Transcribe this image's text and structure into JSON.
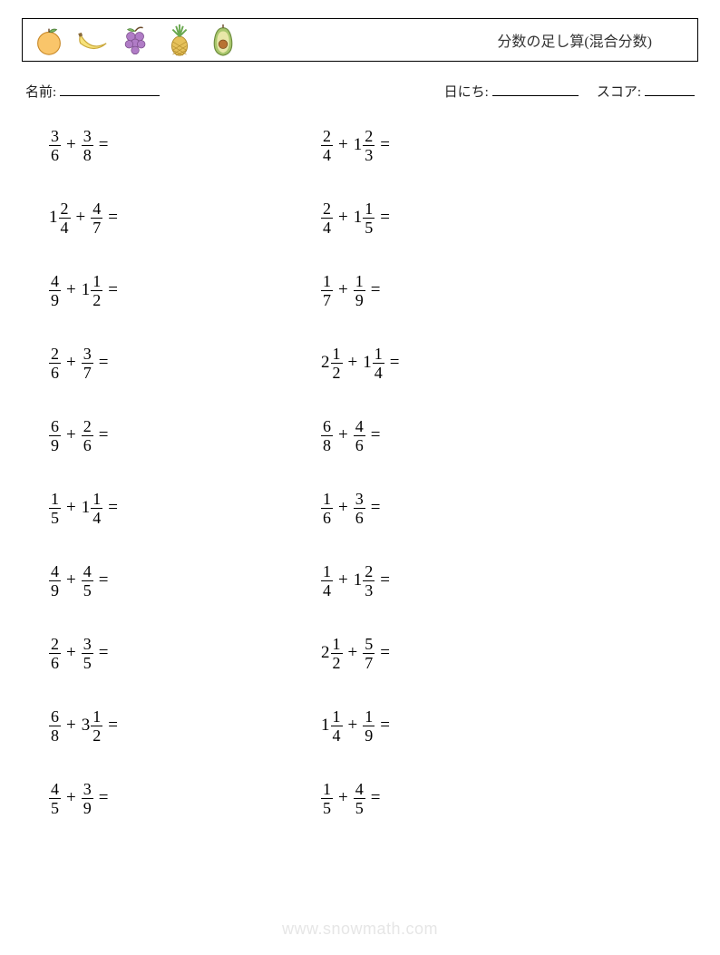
{
  "header": {
    "title": "分数の足し算(混合分数)",
    "fruits": [
      "orange",
      "banana",
      "grapes",
      "pineapple",
      "avocado"
    ]
  },
  "meta": {
    "name_label": "名前:",
    "date_label": "日にち:",
    "score_label": "スコア:"
  },
  "columns": [
    [
      {
        "a": {
          "w": null,
          "n": 3,
          "d": 6
        },
        "b": {
          "w": null,
          "n": 3,
          "d": 8
        }
      },
      {
        "a": {
          "w": 1,
          "n": 2,
          "d": 4
        },
        "b": {
          "w": null,
          "n": 4,
          "d": 7
        }
      },
      {
        "a": {
          "w": null,
          "n": 4,
          "d": 9
        },
        "b": {
          "w": 1,
          "n": 1,
          "d": 2
        }
      },
      {
        "a": {
          "w": null,
          "n": 2,
          "d": 6
        },
        "b": {
          "w": null,
          "n": 3,
          "d": 7
        }
      },
      {
        "a": {
          "w": null,
          "n": 6,
          "d": 9
        },
        "b": {
          "w": null,
          "n": 2,
          "d": 6
        }
      },
      {
        "a": {
          "w": null,
          "n": 1,
          "d": 5
        },
        "b": {
          "w": 1,
          "n": 1,
          "d": 4
        }
      },
      {
        "a": {
          "w": null,
          "n": 4,
          "d": 9
        },
        "b": {
          "w": null,
          "n": 4,
          "d": 5
        }
      },
      {
        "a": {
          "w": null,
          "n": 2,
          "d": 6
        },
        "b": {
          "w": null,
          "n": 3,
          "d": 5
        }
      },
      {
        "a": {
          "w": null,
          "n": 6,
          "d": 8
        },
        "b": {
          "w": 3,
          "n": 1,
          "d": 2
        }
      },
      {
        "a": {
          "w": null,
          "n": 4,
          "d": 5
        },
        "b": {
          "w": null,
          "n": 3,
          "d": 9
        }
      }
    ],
    [
      {
        "a": {
          "w": null,
          "n": 2,
          "d": 4
        },
        "b": {
          "w": 1,
          "n": 2,
          "d": 3
        }
      },
      {
        "a": {
          "w": null,
          "n": 2,
          "d": 4
        },
        "b": {
          "w": 1,
          "n": 1,
          "d": 5
        }
      },
      {
        "a": {
          "w": null,
          "n": 1,
          "d": 7
        },
        "b": {
          "w": null,
          "n": 1,
          "d": 9
        }
      },
      {
        "a": {
          "w": 2,
          "n": 1,
          "d": 2
        },
        "b": {
          "w": 1,
          "n": 1,
          "d": 4
        }
      },
      {
        "a": {
          "w": null,
          "n": 6,
          "d": 8
        },
        "b": {
          "w": null,
          "n": 4,
          "d": 6
        }
      },
      {
        "a": {
          "w": null,
          "n": 1,
          "d": 6
        },
        "b": {
          "w": null,
          "n": 3,
          "d": 6
        }
      },
      {
        "a": {
          "w": null,
          "n": 1,
          "d": 4
        },
        "b": {
          "w": 1,
          "n": 2,
          "d": 3
        }
      },
      {
        "a": {
          "w": 2,
          "n": 1,
          "d": 2
        },
        "b": {
          "w": null,
          "n": 5,
          "d": 7
        }
      },
      {
        "a": {
          "w": 1,
          "n": 1,
          "d": 4
        },
        "b": {
          "w": null,
          "n": 1,
          "d": 9
        }
      },
      {
        "a": {
          "w": null,
          "n": 1,
          "d": 5
        },
        "b": {
          "w": null,
          "n": 4,
          "d": 5
        }
      }
    ]
  ],
  "operator": "+",
  "equals": "=",
  "watermark": "www.snowmath.com",
  "style": {
    "page_bg": "#ffffff",
    "text_color": "#000000",
    "watermark_color": "#e6e6e6",
    "fruit_colors": {
      "orange": {
        "fill": "#f9c56a",
        "leaf": "#7bb661"
      },
      "banana": {
        "fill": "#f7e27a",
        "stroke": "#c9a73a"
      },
      "grapes": {
        "fill": "#b07cc6",
        "leaf": "#7bb661"
      },
      "pineapple": {
        "body": "#e6c15a",
        "leaves": "#6aa84f"
      },
      "avocado": {
        "fill": "#a8c66c",
        "pit": "#b87333"
      }
    }
  }
}
